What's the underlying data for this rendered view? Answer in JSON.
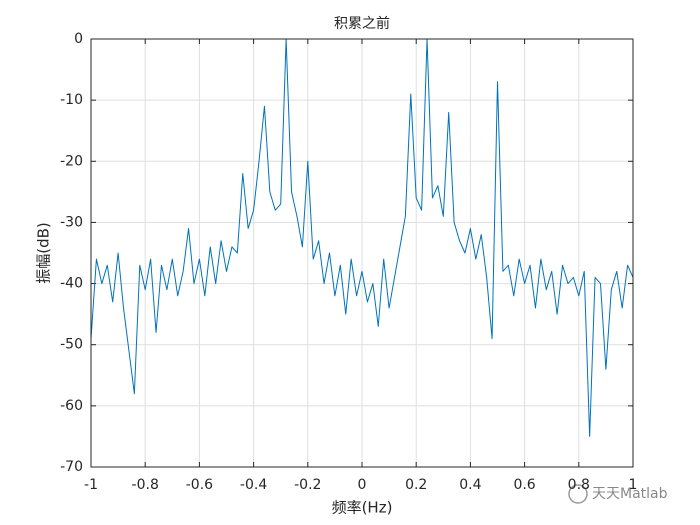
{
  "chart_data": {
    "type": "line",
    "title": "积累之前",
    "xlabel": "频率(Hz)",
    "ylabel": "振幅(dB)",
    "x": [
      -1,
      -0.98,
      -0.96,
      -0.94,
      -0.92,
      -0.9,
      -0.88,
      -0.86,
      -0.84,
      -0.82,
      -0.8,
      -0.78,
      -0.76,
      -0.74,
      -0.72,
      -0.7,
      -0.68,
      -0.66,
      -0.64,
      -0.62,
      -0.6,
      -0.58,
      -0.56,
      -0.54,
      -0.52,
      -0.5,
      -0.48,
      -0.46,
      -0.44,
      -0.42,
      -0.4,
      -0.38,
      -0.36,
      -0.34,
      -0.32,
      -0.3,
      -0.28,
      -0.26,
      -0.24,
      -0.22,
      -0.2,
      -0.18,
      -0.16,
      -0.14,
      -0.12,
      -0.1,
      -0.08,
      -0.06,
      -0.04,
      -0.02,
      0,
      0.02,
      0.04,
      0.06,
      0.08,
      0.1,
      0.12,
      0.14,
      0.16,
      0.18,
      0.2,
      0.22,
      0.24,
      0.26,
      0.28,
      0.3,
      0.32,
      0.34,
      0.36,
      0.38,
      0.4,
      0.42,
      0.44,
      0.46,
      0.48,
      0.5,
      0.52,
      0.54,
      0.56,
      0.58,
      0.6,
      0.62,
      0.64,
      0.66,
      0.68,
      0.7,
      0.72,
      0.74,
      0.76,
      0.78,
      0.8,
      0.82,
      0.84,
      0.86,
      0.88,
      0.9,
      0.92,
      0.94,
      0.96,
      0.98,
      1
    ],
    "values": [
      -49,
      -36,
      -40,
      -37,
      -43,
      -35,
      -44,
      -51,
      -58,
      -37,
      -41,
      -36,
      -48,
      -37,
      -41,
      -36,
      -42,
      -38,
      -31,
      -40,
      -36,
      -42,
      -34,
      -40,
      -33,
      -38,
      -34,
      -35,
      -22,
      -31,
      -28,
      -20,
      -11,
      -25,
      -28,
      -27,
      0,
      -25,
      -29,
      -34,
      -20,
      -36,
      -33,
      -40,
      -35,
      -42,
      -37,
      -45,
      -36,
      -42,
      -38,
      -43,
      -40,
      -47,
      -36,
      -44,
      -39,
      -34,
      -29,
      -9,
      -26,
      -28,
      0,
      -26,
      -24,
      -29,
      -12,
      -30,
      -33,
      -35,
      -31,
      -36,
      -32,
      -39,
      -49,
      -7,
      -38,
      -37,
      -42,
      -36,
      -40,
      -37,
      -44,
      -36,
      -41,
      -38,
      -45,
      -37,
      -40,
      -39,
      -42,
      -38,
      -65,
      -39,
      -40,
      -54,
      -41,
      -38,
      -44,
      -37,
      -39
    ],
    "color": "#0072bd",
    "xlim": [
      -1,
      1
    ],
    "xticks": [
      -1,
      -0.8,
      -0.6,
      -0.4,
      -0.2,
      0,
      0.2,
      0.4,
      0.6,
      0.8,
      1
    ],
    "ylim": [
      -70,
      0
    ],
    "yticks": [
      0,
      -10,
      -20,
      -30,
      -40,
      -50,
      -60,
      -70
    ],
    "grid": true,
    "annotations": [
      "天天Matlab"
    ]
  }
}
